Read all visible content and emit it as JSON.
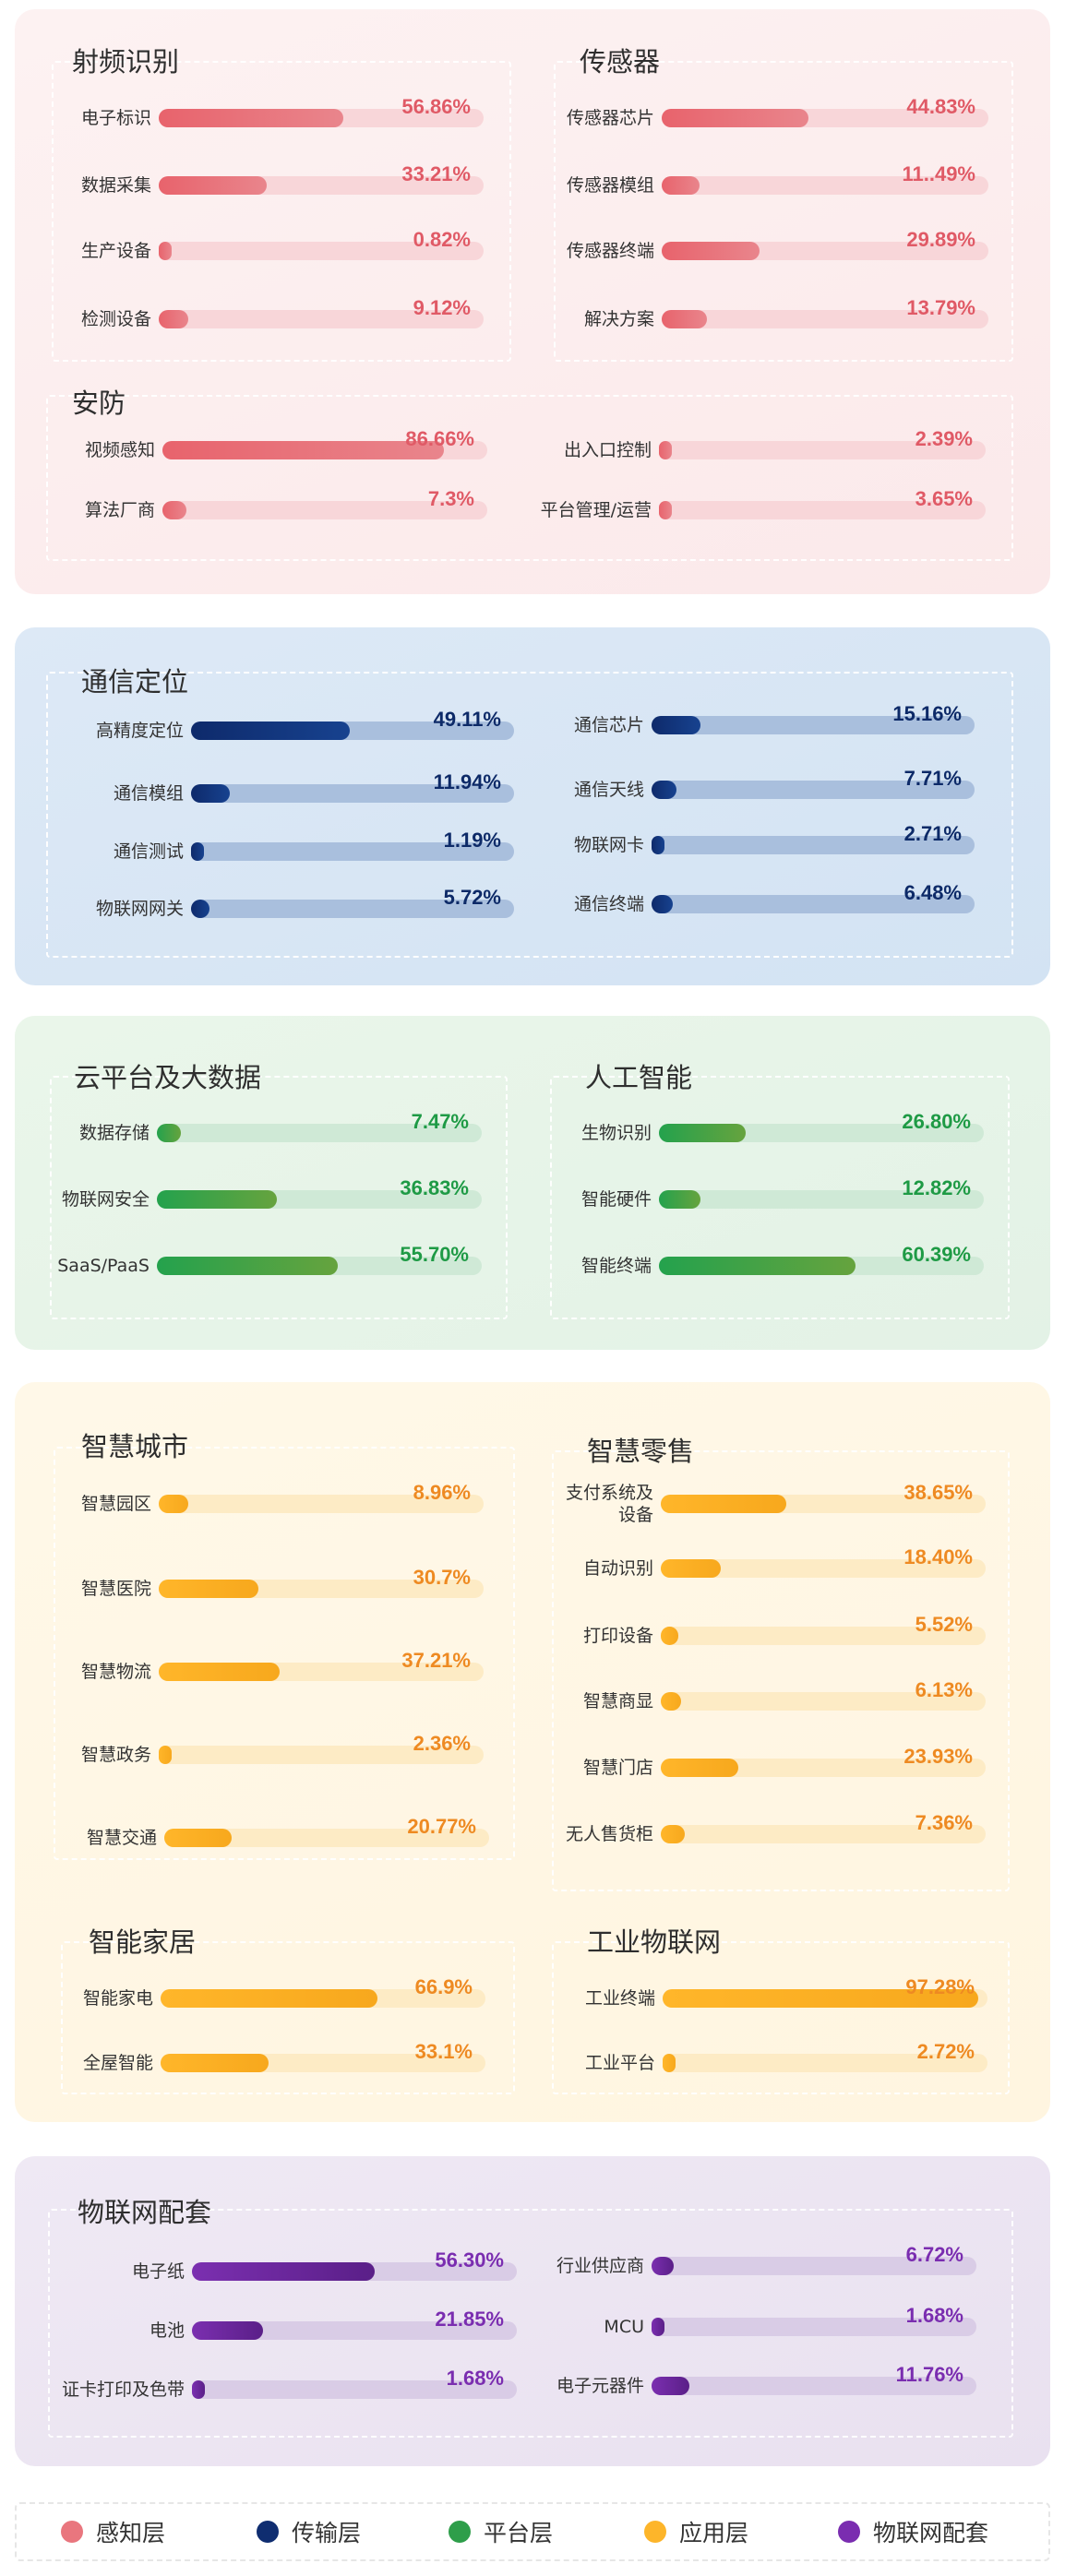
{
  "chart_data": {
    "type": "bar",
    "categories": [
      {
        "name": "射频识别",
        "layer": "感知层",
        "items": [
          {
            "label": "电子标识",
            "value": 56.86,
            "text": "56.86%"
          },
          {
            "label": "数据采集",
            "value": 33.21,
            "text": "33.21%"
          },
          {
            "label": "生产设备",
            "value": 0.82,
            "text": "0.82%"
          },
          {
            "label": "检测设备",
            "value": 9.12,
            "text": "9.12%"
          }
        ]
      },
      {
        "name": "传感器",
        "layer": "感知层",
        "items": [
          {
            "label": "传感器芯片",
            "value": 44.83,
            "text": "44.83%"
          },
          {
            "label": "传感器模组",
            "value": 11.49,
            "text": "11..49%"
          },
          {
            "label": "传感器终端",
            "value": 29.89,
            "text": "29.89%"
          },
          {
            "label": "解决方案",
            "value": 13.79,
            "text": "13.79%"
          }
        ]
      },
      {
        "name": "安防",
        "layer": "感知层",
        "items": [
          {
            "label": "视频感知",
            "value": 86.66,
            "text": "86.66%"
          },
          {
            "label": "算法厂商",
            "value": 7.3,
            "text": "7.3%"
          },
          {
            "label": "出入口控制",
            "value": 2.39,
            "text": "2.39%"
          },
          {
            "label": "平台管理/运营",
            "value": 3.65,
            "text": "3.65%"
          }
        ]
      },
      {
        "name": "通信定位",
        "layer": "传输层",
        "items": [
          {
            "label": "高精度定位",
            "value": 49.11,
            "text": "49.11%"
          },
          {
            "label": "通信模组",
            "value": 11.94,
            "text": "11.94%"
          },
          {
            "label": "通信测试",
            "value": 1.19,
            "text": "1.19%"
          },
          {
            "label": "物联网网关",
            "value": 5.72,
            "text": "5.72%"
          },
          {
            "label": "通信芯片",
            "value": 15.16,
            "text": "15.16%"
          },
          {
            "label": "通信天线",
            "value": 7.71,
            "text": "7.71%"
          },
          {
            "label": "物联网卡",
            "value": 2.71,
            "text": "2.71%"
          },
          {
            "label": "通信终端",
            "value": 6.48,
            "text": "6.48%"
          }
        ]
      },
      {
        "name": "云平台及大数据",
        "layer": "平台层",
        "items": [
          {
            "label": "数据存储",
            "value": 7.47,
            "text": "7.47%"
          },
          {
            "label": "物联网安全",
            "value": 36.83,
            "text": "36.83%"
          },
          {
            "label": "SaaS/PaaS",
            "value": 55.7,
            "text": "55.70%"
          }
        ]
      },
      {
        "name": "人工智能",
        "layer": "平台层",
        "items": [
          {
            "label": "生物识别",
            "value": 26.8,
            "text": "26.80%"
          },
          {
            "label": "智能硬件",
            "value": 12.82,
            "text": "12.82%"
          },
          {
            "label": "智能终端",
            "value": 60.39,
            "text": "60.39%"
          }
        ]
      },
      {
        "name": "智慧城市",
        "layer": "应用层",
        "items": [
          {
            "label": "智慧园区",
            "value": 8.96,
            "text": "8.96%"
          },
          {
            "label": "智慧医院",
            "value": 30.7,
            "text": "30.7%"
          },
          {
            "label": "智慧物流",
            "value": 37.21,
            "text": "37.21%"
          },
          {
            "label": "智慧政务",
            "value": 2.36,
            "text": "2.36%"
          },
          {
            "label": "智慧交通",
            "value": 20.77,
            "text": "20.77%"
          }
        ]
      },
      {
        "name": "智慧零售",
        "layer": "应用层",
        "items": [
          {
            "label": "支付系统及设备",
            "value": 38.65,
            "text": "38.65%"
          },
          {
            "label": "自动识别",
            "value": 18.4,
            "text": "18.40%"
          },
          {
            "label": "打印设备",
            "value": 5.52,
            "text": "5.52%"
          },
          {
            "label": "智慧商显",
            "value": 6.13,
            "text": "6.13%"
          },
          {
            "label": "智慧门店",
            "value": 23.93,
            "text": "23.93%"
          },
          {
            "label": "无人售货柜",
            "value": 7.36,
            "text": "7.36%"
          }
        ]
      },
      {
        "name": "智能家居",
        "layer": "应用层",
        "items": [
          {
            "label": "智能家电",
            "value": 66.9,
            "text": "66.9%"
          },
          {
            "label": "全屋智能",
            "value": 33.1,
            "text": "33.1%"
          }
        ]
      },
      {
        "name": "工业物联网",
        "layer": "应用层",
        "items": [
          {
            "label": "工业终端",
            "value": 97.28,
            "text": "97.28%"
          },
          {
            "label": "工业平台",
            "value": 2.72,
            "text": "2.72%"
          }
        ]
      },
      {
        "name": "物联网配套",
        "layer": "物联网配套",
        "items": [
          {
            "label": "电子纸",
            "value": 56.3,
            "text": "56.30%"
          },
          {
            "label": "电池",
            "value": 21.85,
            "text": "21.85%"
          },
          {
            "label": "证卡打印及色带",
            "value": 1.68,
            "text": "1.68%"
          },
          {
            "label": "行业供应商",
            "value": 6.72,
            "text": "6.72%"
          },
          {
            "label": "MCU",
            "value": 1.68,
            "text": "1.68%"
          },
          {
            "label": "电子元器件",
            "value": 11.76,
            "text": "11.76%"
          }
        ]
      }
    ],
    "ylim": [
      0,
      100
    ]
  },
  "legend": [
    {
      "label": "感知层",
      "color": "#e9767e"
    },
    {
      "label": "传输层",
      "color": "#0f2d70"
    },
    {
      "label": "平台层",
      "color": "#2e9e4a"
    },
    {
      "label": "应用层",
      "color": "#fdb52a"
    },
    {
      "label": "物联网配套",
      "color": "#7a2db0"
    }
  ]
}
